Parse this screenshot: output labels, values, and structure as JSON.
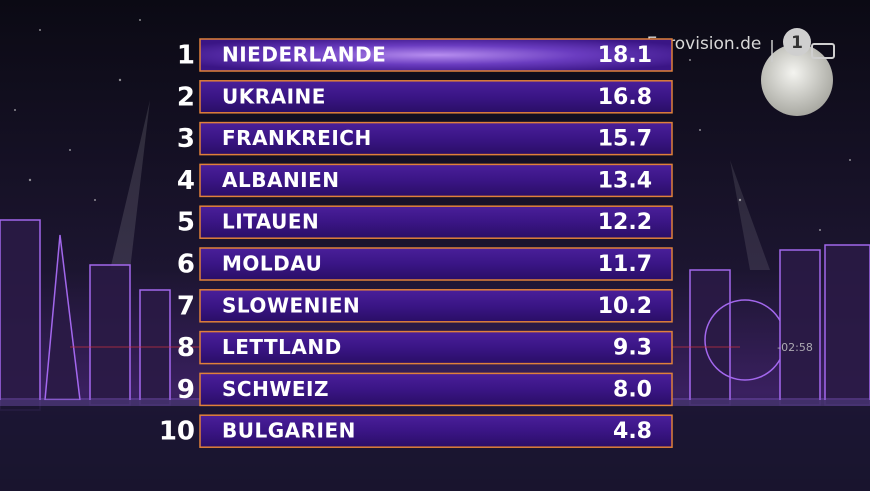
{
  "watermark": "Eurovision.de",
  "channel_logo": "1",
  "timer": "-02:58",
  "table": {
    "rows": [
      [
        "1",
        "NIEDERLANDE",
        "18.1"
      ],
      [
        "2",
        "UKRAINE",
        "16.8"
      ],
      [
        "3",
        "FRANKREICH",
        "15.7"
      ],
      [
        "4",
        "ALBANIEN",
        "13.4"
      ],
      [
        "5",
        "LITAUEN",
        "12.2"
      ],
      [
        "6",
        "MOLDAU",
        "11.7"
      ],
      [
        "7",
        "SLOWENIEN",
        "10.2"
      ],
      [
        "8",
        "LETTLAND",
        "9.3"
      ],
      [
        "9",
        "SCHWEIZ",
        "8.0"
      ],
      [
        "10",
        "BULGARIEN",
        "4.8"
      ]
    ]
  }
}
